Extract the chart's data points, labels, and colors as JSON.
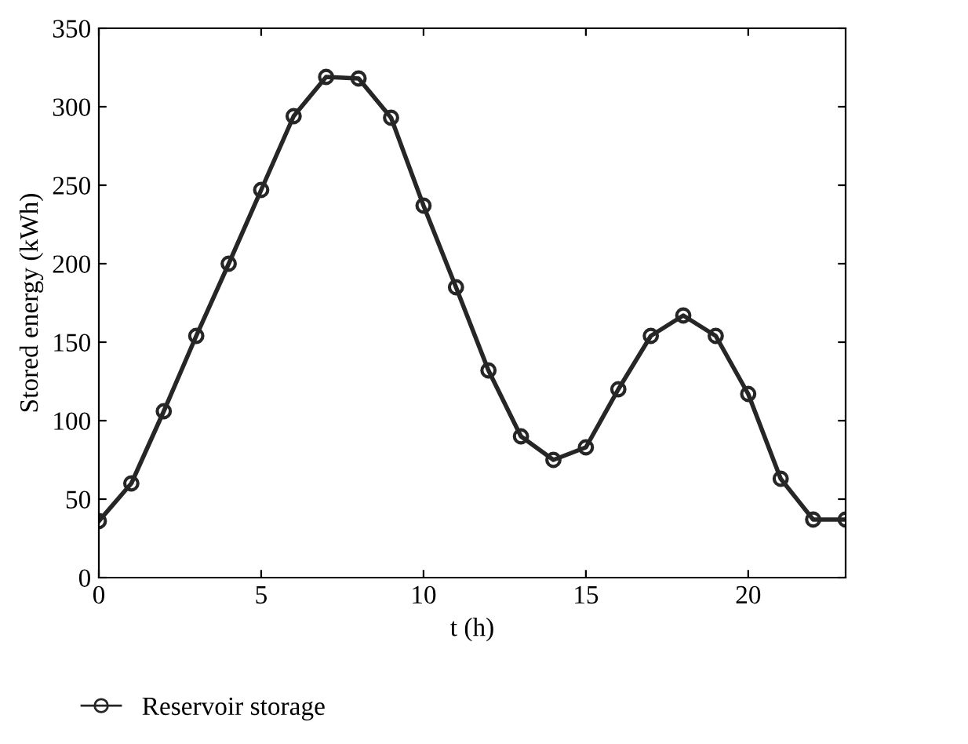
{
  "chart_data": {
    "type": "line",
    "xlabel": "t (h)",
    "ylabel": "Stored energy (kWh)",
    "x": [
      0,
      1,
      2,
      3,
      4,
      5,
      6,
      7,
      8,
      9,
      10,
      11,
      12,
      13,
      14,
      15,
      16,
      17,
      18,
      19,
      20,
      21,
      22,
      23
    ],
    "series": [
      {
        "name": "Reservoir storage",
        "color": "#262626",
        "values": [
          36,
          60,
          106,
          154,
          200,
          247,
          294,
          319,
          318,
          293,
          237,
          185,
          132,
          90,
          75,
          83,
          120,
          154,
          167,
          154,
          117,
          63,
          37,
          37
        ]
      }
    ],
    "xlim": [
      0,
      23
    ],
    "xticks": [
      0,
      5,
      10,
      15,
      20
    ],
    "ylim": [
      0,
      350
    ],
    "yticks": [
      0,
      50,
      100,
      150,
      200,
      250,
      300,
      350
    ],
    "grid": false,
    "legend": "bottom left",
    "marker": "circle",
    "line_style": "solid"
  }
}
